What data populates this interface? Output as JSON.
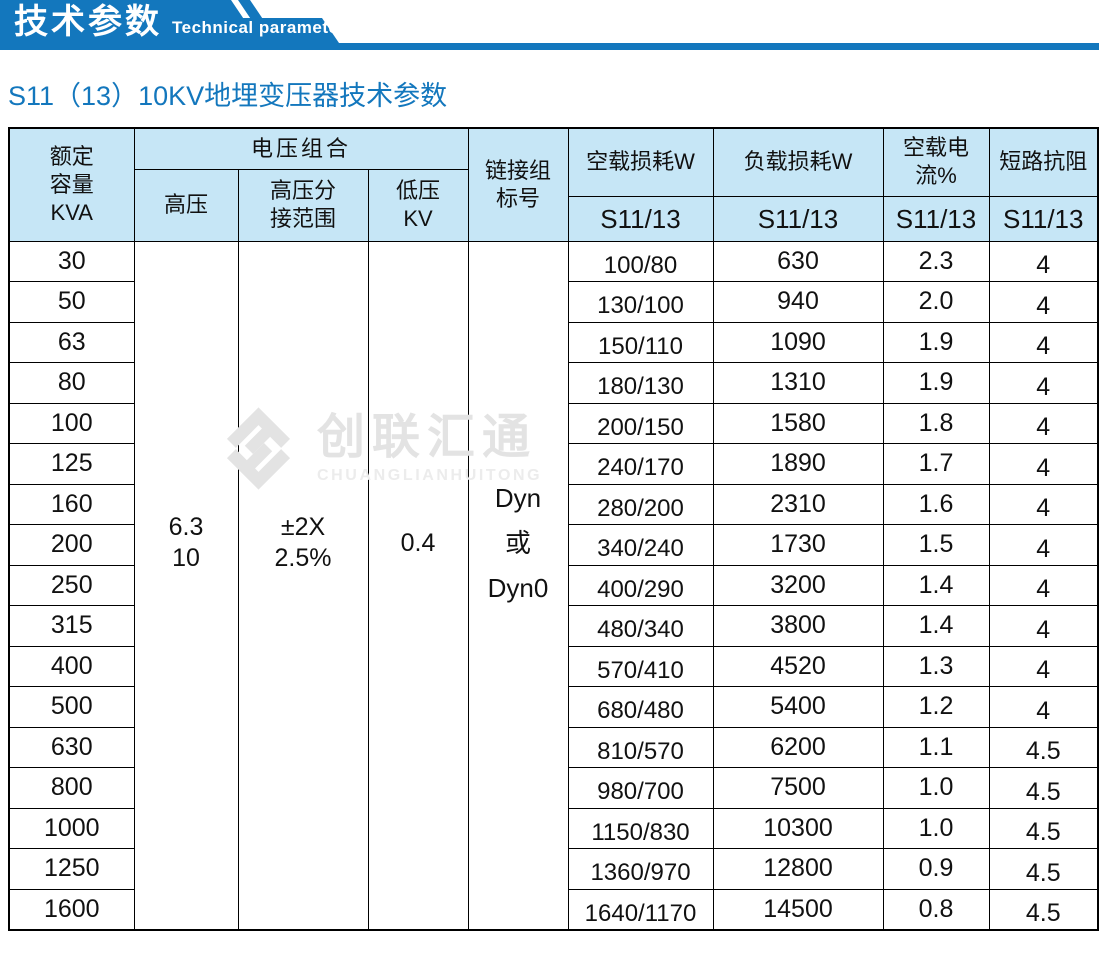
{
  "colors": {
    "banner_blue": "#1377bd",
    "title_blue": "#1377bd",
    "header_bg": "#c6e6f6",
    "border_black": "#000000",
    "watermark_grey": "#e3e3e3"
  },
  "banner": {
    "title_cn": "技术参数",
    "title_en": "Technical parameter"
  },
  "page_title": "S11（13）10KV地埋变压器技术参数",
  "watermark": {
    "cn": "创联汇通",
    "en": "CHUANGLIANHUITONG"
  },
  "table": {
    "header": {
      "rated_capacity": "额定\n容量\nKVA",
      "voltage_combo": "电压组合",
      "hv": "高压",
      "hv_tap": "高压分\n接范围",
      "lv": "低压\nKV",
      "vector_group": "链接组\n标号",
      "no_load_loss": "空载损耗W",
      "load_loss": "负载损耗W",
      "no_load_current": "空载电流%",
      "impedance": "短路抗阻",
      "model": "S11/13"
    },
    "merged": {
      "hv": "6.3\n10",
      "hv_tap": "±2X\n2.5%",
      "lv": "0.4",
      "vector_group": "Dyn\n或\nDyn0"
    },
    "rows": [
      {
        "capacity": "30",
        "no_load_loss_w": "100/80",
        "load_loss_w": "630",
        "no_load_current": "2.3",
        "impedance": "4"
      },
      {
        "capacity": "50",
        "no_load_loss_w": "130/100",
        "load_loss_w": "940",
        "no_load_current": "2.0",
        "impedance": "4"
      },
      {
        "capacity": "63",
        "no_load_loss_w": "150/110",
        "load_loss_w": "1090",
        "no_load_current": "1.9",
        "impedance": "4"
      },
      {
        "capacity": "80",
        "no_load_loss_w": "180/130",
        "load_loss_w": "1310",
        "no_load_current": "1.9",
        "impedance": "4"
      },
      {
        "capacity": "100",
        "no_load_loss_w": "200/150",
        "load_loss_w": "1580",
        "no_load_current": "1.8",
        "impedance": "4"
      },
      {
        "capacity": "125",
        "no_load_loss_w": "240/170",
        "load_loss_w": "1890",
        "no_load_current": "1.7",
        "impedance": "4"
      },
      {
        "capacity": "160",
        "no_load_loss_w": "280/200",
        "load_loss_w": "2310",
        "no_load_current": "1.6",
        "impedance": "4"
      },
      {
        "capacity": "200",
        "no_load_loss_w": "340/240",
        "load_loss_w": "1730",
        "no_load_current": "1.5",
        "impedance": "4"
      },
      {
        "capacity": "250",
        "no_load_loss_w": "400/290",
        "load_loss_w": "3200",
        "no_load_current": "1.4",
        "impedance": "4"
      },
      {
        "capacity": "315",
        "no_load_loss_w": "480/340",
        "load_loss_w": "3800",
        "no_load_current": "1.4",
        "impedance": "4"
      },
      {
        "capacity": "400",
        "no_load_loss_w": "570/410",
        "load_loss_w": "4520",
        "no_load_current": "1.3",
        "impedance": "4"
      },
      {
        "capacity": "500",
        "no_load_loss_w": "680/480",
        "load_loss_w": "5400",
        "no_load_current": "1.2",
        "impedance": "4"
      },
      {
        "capacity": "630",
        "no_load_loss_w": "810/570",
        "load_loss_w": "6200",
        "no_load_current": "1.1",
        "impedance": "4.5"
      },
      {
        "capacity": "800",
        "no_load_loss_w": "980/700",
        "load_loss_w": "7500",
        "no_load_current": "1.0",
        "impedance": "4.5"
      },
      {
        "capacity": "1000",
        "no_load_loss_w": "1150/830",
        "load_loss_w": "10300",
        "no_load_current": "1.0",
        "impedance": "4.5"
      },
      {
        "capacity": "1250",
        "no_load_loss_w": "1360/970",
        "load_loss_w": "12800",
        "no_load_current": "0.9",
        "impedance": "4.5"
      },
      {
        "capacity": "1600",
        "no_load_loss_w": "1640/1170",
        "load_loss_w": "14500",
        "no_load_current": "0.8",
        "impedance": "4.5"
      }
    ]
  }
}
